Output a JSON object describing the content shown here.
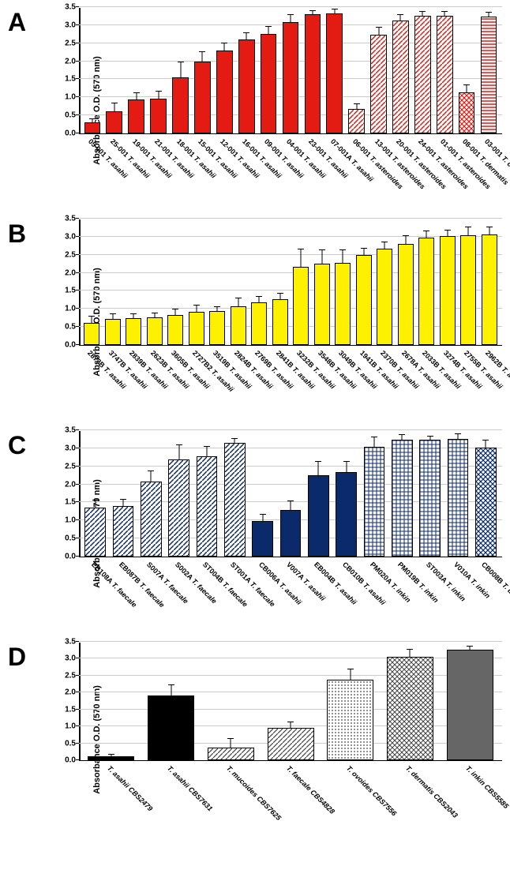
{
  "global": {
    "y_label": "Absorbance O.D. (570 nm)",
    "ylim": [
      0,
      3.5
    ],
    "ytick_step": 0.5,
    "grid_color": "#cccccc",
    "bg_color": "#ffffff",
    "label_fontsize": 11,
    "tick_fontsize": 10,
    "x_label_rotation": 45
  },
  "panels": {
    "A": {
      "label": "A",
      "type": "bar",
      "bars": [
        {
          "cat_id": "05-001",
          "cat_sp": "T. asahii",
          "val": 0.31,
          "err": 0.08,
          "fill": "fill-red-solid"
        },
        {
          "cat_id": "25-001",
          "cat_sp": "T. asahii",
          "val": 0.62,
          "err": 0.22,
          "fill": "fill-red-solid"
        },
        {
          "cat_id": "19-001",
          "cat_sp": "T. asahii",
          "val": 0.94,
          "err": 0.17,
          "fill": "fill-red-solid"
        },
        {
          "cat_id": "21-001",
          "cat_sp": "T. asahii",
          "val": 0.97,
          "err": 0.2,
          "fill": "fill-red-solid"
        },
        {
          "cat_id": "18-001",
          "cat_sp": "T. asahii",
          "val": 1.56,
          "err": 0.4,
          "fill": "fill-red-solid"
        },
        {
          "cat_id": "15-001",
          "cat_sp": "T. asahii",
          "val": 2.0,
          "err": 0.26,
          "fill": "fill-red-solid"
        },
        {
          "cat_id": "12-001",
          "cat_sp": "T. asahii",
          "val": 2.31,
          "err": 0.18,
          "fill": "fill-red-solid"
        },
        {
          "cat_id": "16-001",
          "cat_sp": "T. asahii",
          "val": 2.61,
          "err": 0.17,
          "fill": "fill-red-solid"
        },
        {
          "cat_id": "09-001",
          "cat_sp": "T. asahii",
          "val": 2.77,
          "err": 0.18,
          "fill": "fill-red-solid"
        },
        {
          "cat_id": "04-001",
          "cat_sp": "T. asahii",
          "val": 3.1,
          "err": 0.18,
          "fill": "fill-red-solid"
        },
        {
          "cat_id": "23-001",
          "cat_sp": "T. asahii",
          "val": 3.32,
          "err": 0.08,
          "fill": "fill-red-solid"
        },
        {
          "cat_id": "07-001A",
          "cat_sp": "T. asahii",
          "val": 3.35,
          "err": 0.09,
          "fill": "fill-red-solid"
        },
        {
          "cat_id": "06-001",
          "cat_sp": "T. asteroides",
          "val": 0.69,
          "err": 0.13,
          "fill": "fill-red-diag"
        },
        {
          "cat_id": "13-001",
          "cat_sp": "T. asteroides",
          "val": 2.76,
          "err": 0.18,
          "fill": "fill-red-diag"
        },
        {
          "cat_id": "20-001",
          "cat_sp": "T. asteroides",
          "val": 3.15,
          "err": 0.14,
          "fill": "fill-red-diag"
        },
        {
          "cat_id": "24-001",
          "cat_sp": "T. asteroides",
          "val": 3.27,
          "err": 0.09,
          "fill": "fill-red-diag"
        },
        {
          "cat_id": "01-001",
          "cat_sp": "T. asteroides",
          "val": 3.27,
          "err": 0.1,
          "fill": "fill-red-diag"
        },
        {
          "cat_id": "08-001",
          "cat_sp": "T. dermatis",
          "val": 1.15,
          "err": 0.18,
          "fill": "fill-red-cross"
        },
        {
          "cat_id": "03-001",
          "cat_sp": "T. coremiiforme",
          "val": 3.25,
          "err": 0.1,
          "fill": "fill-red-horiz"
        }
      ]
    },
    "B": {
      "label": "B",
      "type": "bar",
      "bars": [
        {
          "cat_id": "2873B",
          "cat_sp": "T. asahii",
          "val": 0.62,
          "err": 0.16,
          "fill": "fill-yellow-solid"
        },
        {
          "cat_id": "3747B",
          "cat_sp": "T. asahii",
          "val": 0.73,
          "err": 0.13,
          "fill": "fill-yellow-solid"
        },
        {
          "cat_id": "2839B",
          "cat_sp": "T. asahii",
          "val": 0.74,
          "err": 0.11,
          "fill": "fill-yellow-solid"
        },
        {
          "cat_id": "2623B",
          "cat_sp": "T. asahii",
          "val": 0.77,
          "err": 0.11,
          "fill": "fill-yellow-solid"
        },
        {
          "cat_id": "3605B",
          "cat_sp": "T. asahii",
          "val": 0.83,
          "err": 0.15,
          "fill": "fill-yellow-solid"
        },
        {
          "cat_id": "2727B2",
          "cat_sp": "T. asahii",
          "val": 0.92,
          "err": 0.18,
          "fill": "fill-yellow-solid"
        },
        {
          "cat_id": "3519B",
          "cat_sp": "T. asahii",
          "val": 0.94,
          "err": 0.12,
          "fill": "fill-yellow-solid"
        },
        {
          "cat_id": "2824B",
          "cat_sp": "T. asahii",
          "val": 1.08,
          "err": 0.22,
          "fill": "fill-yellow-solid"
        },
        {
          "cat_id": "2769B",
          "cat_sp": "T. asahii",
          "val": 1.18,
          "err": 0.16,
          "fill": "fill-yellow-solid"
        },
        {
          "cat_id": "2841B",
          "cat_sp": "T. asahii",
          "val": 1.27,
          "err": 0.15,
          "fill": "fill-yellow-solid"
        },
        {
          "cat_id": "3232B",
          "cat_sp": "T. asahii",
          "val": 2.19,
          "err": 0.45,
          "fill": "fill-yellow-solid"
        },
        {
          "cat_id": "3548B",
          "cat_sp": "T. asahii",
          "val": 2.26,
          "err": 0.36,
          "fill": "fill-yellow-solid"
        },
        {
          "cat_id": "3049B",
          "cat_sp": "T. asahii",
          "val": 2.28,
          "err": 0.35,
          "fill": "fill-yellow-solid"
        },
        {
          "cat_id": "1941B",
          "cat_sp": "T. asahii",
          "val": 2.51,
          "err": 0.16,
          "fill": "fill-yellow-solid"
        },
        {
          "cat_id": "2370B",
          "cat_sp": "T. asahii",
          "val": 2.69,
          "err": 0.16,
          "fill": "fill-yellow-solid"
        },
        {
          "cat_id": "2678A",
          "cat_sp": "T. asahii",
          "val": 2.82,
          "err": 0.21,
          "fill": "fill-yellow-solid"
        },
        {
          "cat_id": "2033B",
          "cat_sp": "T. asahii",
          "val": 3.0,
          "err": 0.14,
          "fill": "fill-yellow-solid"
        },
        {
          "cat_id": "3274B",
          "cat_sp": "T. asahii",
          "val": 3.03,
          "err": 0.14,
          "fill": "fill-yellow-solid"
        },
        {
          "cat_id": "2755B",
          "cat_sp": "T. asahii",
          "val": 3.06,
          "err": 0.19,
          "fill": "fill-yellow-solid"
        },
        {
          "cat_id": "2962B",
          "cat_sp": "T. asahii",
          "val": 3.08,
          "err": 0.19,
          "fill": "fill-yellow-solid"
        }
      ]
    },
    "C": {
      "label": "C",
      "type": "bar",
      "bars": [
        {
          "cat_id": "EB108A",
          "cat_sp": "T. faecale",
          "val": 1.36,
          "err": 0.19,
          "fill": "fill-navy-diag"
        },
        {
          "cat_id": "EB087B",
          "cat_sp": "T. faecale",
          "val": 1.4,
          "err": 0.17,
          "fill": "fill-navy-diag"
        },
        {
          "cat_id": "S007A",
          "cat_sp": "T. faecale",
          "val": 2.1,
          "err": 0.27,
          "fill": "fill-navy-diag"
        },
        {
          "cat_id": "S002A",
          "cat_sp": "T. faecale",
          "val": 2.71,
          "err": 0.37,
          "fill": "fill-navy-diag"
        },
        {
          "cat_id": "ST004B",
          "cat_sp": "T. faecale",
          "val": 2.79,
          "err": 0.26,
          "fill": "fill-navy-diag"
        },
        {
          "cat_id": "ST001A",
          "cat_sp": "T. faecale",
          "val": 3.17,
          "err": 0.09,
          "fill": "fill-navy-diag"
        },
        {
          "cat_id": "CB006A",
          "cat_sp": "T. asahii",
          "val": 0.99,
          "err": 0.16,
          "fill": "fill-navy-solid"
        },
        {
          "cat_id": "V007A",
          "cat_sp": "T. asahii",
          "val": 1.31,
          "err": 0.23,
          "fill": "fill-navy-solid"
        },
        {
          "cat_id": "EB004B",
          "cat_sp": "T. asahii",
          "val": 2.27,
          "err": 0.35,
          "fill": "fill-navy-solid"
        },
        {
          "cat_id": "CB010B",
          "cat_sp": "T. asahii",
          "val": 2.36,
          "err": 0.27,
          "fill": "fill-navy-solid"
        },
        {
          "cat_id": "PM020A",
          "cat_sp": "T. inkin",
          "val": 3.06,
          "err": 0.24,
          "fill": "fill-navy-grid"
        },
        {
          "cat_id": "PM019B",
          "cat_sp": "T. inkin",
          "val": 3.26,
          "err": 0.11,
          "fill": "fill-navy-grid"
        },
        {
          "cat_id": "ST003A",
          "cat_sp": "T. inkin",
          "val": 3.26,
          "err": 0.06,
          "fill": "fill-navy-grid"
        },
        {
          "cat_id": "V010A",
          "cat_sp": "T. inkin",
          "val": 3.29,
          "err": 0.11,
          "fill": "fill-navy-grid"
        },
        {
          "cat_id": "CB008B",
          "cat_sp": "T. dermatis",
          "val": 3.04,
          "err": 0.17,
          "fill": "fill-navy-cross"
        }
      ]
    },
    "D": {
      "label": "D",
      "type": "bar",
      "bars": [
        {
          "cat_id": "",
          "cat_sp": "T. asahii CBS2479",
          "val": 0.11,
          "err": 0.05,
          "fill": "fill-black-solid"
        },
        {
          "cat_id": "",
          "cat_sp": "T. asahii CBS7631",
          "val": 1.92,
          "err": 0.3,
          "fill": "fill-black-solid"
        },
        {
          "cat_id": "",
          "cat_sp": "T. mucoides CBS7625",
          "val": 0.37,
          "err": 0.25,
          "fill": "fill-grey-diag"
        },
        {
          "cat_id": "",
          "cat_sp": "T. faecale CBS4828",
          "val": 0.96,
          "err": 0.17,
          "fill": "fill-grey-diag"
        },
        {
          "cat_id": "",
          "cat_sp": "T. ovoides CBS7556",
          "val": 2.39,
          "err": 0.3,
          "fill": "fill-grey-dots"
        },
        {
          "cat_id": "",
          "cat_sp": "T. dermatis CBS2043",
          "val": 3.08,
          "err": 0.18,
          "fill": "fill-grey-cross"
        },
        {
          "cat_id": "",
          "cat_sp": "T. inkin CBS5585",
          "val": 3.29,
          "err": 0.06,
          "fill": "fill-grey-solid"
        }
      ]
    }
  }
}
